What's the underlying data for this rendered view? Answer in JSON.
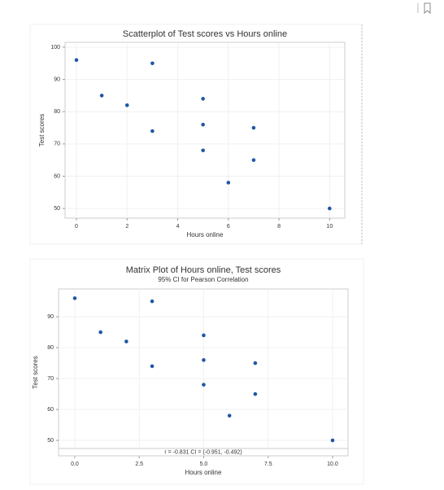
{
  "chart_data": [
    {
      "type": "scatter",
      "title": "Scatterplot of Test scores vs Hours online",
      "x_label": "Hours online",
      "y_label": "Test scores",
      "x": [
        0,
        1,
        2,
        3,
        3,
        5,
        5,
        5,
        6,
        7,
        7,
        10
      ],
      "series": [
        {
          "color": "#1f57a5",
          "values": [
            96,
            85,
            82,
            95,
            74,
            84,
            76,
            68,
            58,
            75,
            65,
            50
          ]
        }
      ],
      "xlim": [
        -0.45,
        10.6
      ],
      "ylim": [
        47,
        101.5
      ],
      "xticks": [
        0,
        2,
        4,
        6,
        8,
        10
      ],
      "yticks": [
        50,
        60,
        70,
        80,
        90,
        100
      ],
      "grid": true
    },
    {
      "type": "scatter",
      "title": "Matrix Plot of Hours online, Test scores",
      "subtitle": "95% CI for Pearson Correlation",
      "annotation": "r = -0.831  CI = (-0.951, -0.492)",
      "x_label": "Hours online",
      "y_label": "Test scores",
      "x": [
        0,
        1,
        2,
        3,
        3,
        5,
        5,
        5,
        6,
        7,
        7,
        10
      ],
      "series": [
        {
          "color": "#1f57a5",
          "values": [
            96,
            85,
            82,
            95,
            74,
            84,
            76,
            68,
            58,
            75,
            65,
            50
          ]
        }
      ],
      "xlim": [
        -0.63,
        10.6
      ],
      "ylim": [
        45,
        99
      ],
      "xticks": [
        {
          "value": 0,
          "label": "0.0"
        },
        {
          "value": 2.5,
          "label": "2.5"
        },
        {
          "value": 5,
          "label": "5.0"
        },
        {
          "value": 7.5,
          "label": "7.5"
        },
        {
          "value": 10,
          "label": "10.0"
        }
      ],
      "yticks": [
        50,
        60,
        70,
        80,
        90
      ],
      "grid": true
    }
  ]
}
